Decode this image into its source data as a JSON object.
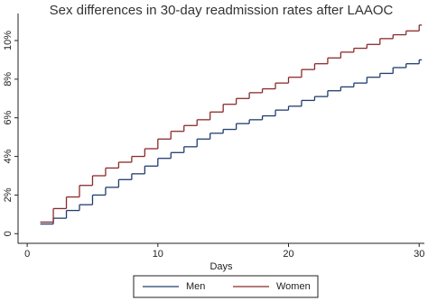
{
  "chart_data": {
    "type": "step",
    "title": "Sex differences in 30-day readmission rates after LAAOC",
    "x_label": "Days",
    "x": [
      1,
      2,
      3,
      4,
      5,
      6,
      7,
      8,
      9,
      10,
      11,
      12,
      13,
      14,
      15,
      16,
      17,
      18,
      19,
      20,
      21,
      22,
      23,
      24,
      25,
      26,
      27,
      28,
      29,
      30
    ],
    "series": [
      {
        "name": "Men",
        "color": "#1f3d6e",
        "values": [
          0.5,
          0.8,
          1.2,
          1.5,
          2.0,
          2.4,
          2.8,
          3.1,
          3.5,
          3.9,
          4.2,
          4.5,
          4.9,
          5.2,
          5.4,
          5.7,
          5.9,
          6.1,
          6.4,
          6.6,
          6.9,
          7.1,
          7.4,
          7.6,
          7.8,
          8.1,
          8.3,
          8.6,
          8.8,
          9.0
        ]
      },
      {
        "name": "Women",
        "color": "#8b2a2a",
        "values": [
          0.6,
          1.3,
          1.9,
          2.5,
          3.0,
          3.4,
          3.7,
          4.0,
          4.4,
          4.9,
          5.3,
          5.6,
          5.9,
          6.3,
          6.7,
          7.0,
          7.3,
          7.5,
          7.8,
          8.1,
          8.5,
          8.8,
          9.1,
          9.4,
          9.6,
          9.8,
          10.1,
          10.3,
          10.5,
          10.8
        ]
      }
    ],
    "xlim": [
      -0.7,
      30.4
    ],
    "ylim": [
      -0.5,
      11.4
    ],
    "xticks": [
      0,
      10,
      20,
      30
    ],
    "yticks": [
      0,
      {
        "value": 2,
        "label": "2%"
      },
      {
        "value": 4,
        "label": "4%"
      },
      {
        "value": 6,
        "label": "6%"
      },
      {
        "value": 8,
        "label": "8%"
      },
      {
        "value": 10,
        "label": "10%"
      }
    ],
    "grid": false,
    "legend": "bottom"
  }
}
